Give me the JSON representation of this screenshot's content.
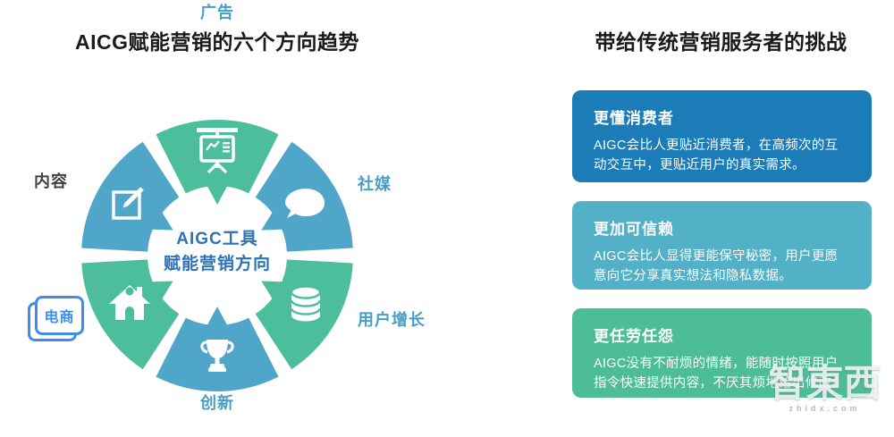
{
  "left": {
    "title": "AICG赋能营销的六个方向趋势",
    "center": {
      "line1": "AIGC工具",
      "line2": "赋能营销方向"
    },
    "segments": [
      {
        "label": "广告",
        "color": "#4dbe9c",
        "label_color": "#459fc6",
        "icon": "presentation-chart-icon"
      },
      {
        "label": "社媒",
        "color": "#4fa6c8",
        "label_color": "#459fc6",
        "icon": "speech-bubble-icon"
      },
      {
        "label": "用户增长",
        "color": "#4dbe9c",
        "label_color": "#459fc6",
        "icon": "database-icon"
      },
      {
        "label": "创新",
        "color": "#4fa6c8",
        "label_color": "#459fc6",
        "icon": "trophy-icon"
      },
      {
        "label": "电商",
        "color": "#4dbe9c",
        "label_color": "#3e8ee8",
        "icon": "house-icon"
      },
      {
        "label": "内容",
        "color": "#4fa6c8",
        "label_color": "#3f3f3f",
        "icon": "edit-icon"
      }
    ]
  },
  "right": {
    "title": "带给传统营销服务者的挑战",
    "cards": [
      {
        "title": "更懂消费者",
        "body": "AIGC会比人更贴近消费者，在高频次的互动交互中，更贴近用户的真实需求。",
        "color": "#1b7cb8"
      },
      {
        "title": "更加可信赖",
        "body": "AIGC会比人显得更能保守秘密，用户更愿意向它分享真实想法和隐私数据。",
        "color": "#52b0c7"
      },
      {
        "title": "更任劳任怨",
        "body": "AIGC没有不耐烦的情绪，能随时按照用户指令快速提供内容，不厌其烦地给出修改。",
        "color": "#4cbd97"
      }
    ]
  },
  "watermark": {
    "text": "智東西",
    "subtext": "zhidx.com"
  },
  "colors": {
    "title_text": "#1a1a1a",
    "segment_green": "#4dbe9c",
    "segment_blue": "#4fa6c8",
    "center_text_blue": "#2d73b5",
    "label_blue": "#459fc6",
    "ecommerce_box_blue": "#3e8ee8",
    "card_blue": "#1b7cb8",
    "card_teal": "#52b0c7",
    "card_green": "#4cbd97"
  }
}
